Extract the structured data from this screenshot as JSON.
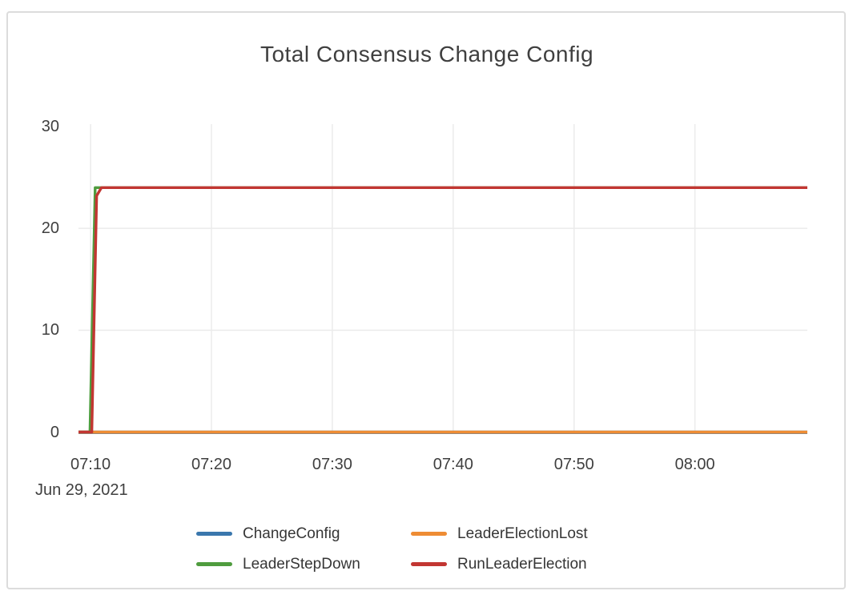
{
  "chart_data": {
    "type": "line",
    "title": "Total Consensus Change Config",
    "x_axis": {
      "date_label": "Jun 29, 2021",
      "unit": "time",
      "range_minutes": [
        9,
        69.3
      ],
      "ticks": [
        {
          "t": 10,
          "label": "07:10"
        },
        {
          "t": 20,
          "label": "07:20"
        },
        {
          "t": 30,
          "label": "07:30"
        },
        {
          "t": 40,
          "label": "07:40"
        },
        {
          "t": 50,
          "label": "07:50"
        },
        {
          "t": 60,
          "label": "08:00"
        }
      ]
    },
    "y_axis": {
      "range": [
        0,
        30
      ],
      "ticks": [
        {
          "v": 0,
          "label": "0",
          "grid": false
        },
        {
          "v": 10,
          "label": "10",
          "grid": true
        },
        {
          "v": 20,
          "label": "20",
          "grid": true
        },
        {
          "v": 30,
          "label": "30",
          "grid": false
        }
      ]
    },
    "grid_color": "#ebebeb",
    "zero_line_color": "#3b3b3b",
    "legend_position": "bottom",
    "series": [
      {
        "name": "ChangeConfig",
        "color": "#3a77ad",
        "points": [
          [
            9,
            0
          ],
          [
            69.3,
            0
          ]
        ]
      },
      {
        "name": "LeaderElectionLost",
        "color": "#ee8c34",
        "points": [
          [
            9,
            0
          ],
          [
            69.3,
            0
          ]
        ]
      },
      {
        "name": "LeaderStepDown",
        "color": "#4f9c3e",
        "points": [
          [
            9,
            0
          ],
          [
            9.95,
            0
          ],
          [
            10.38,
            24
          ],
          [
            69.3,
            24
          ]
        ]
      },
      {
        "name": "RunLeaderElection",
        "color": "#c23632",
        "points": [
          [
            9,
            0
          ],
          [
            10.1,
            0
          ],
          [
            10.5,
            23.2
          ],
          [
            10.9,
            24
          ],
          [
            69.3,
            24
          ]
        ]
      }
    ]
  }
}
